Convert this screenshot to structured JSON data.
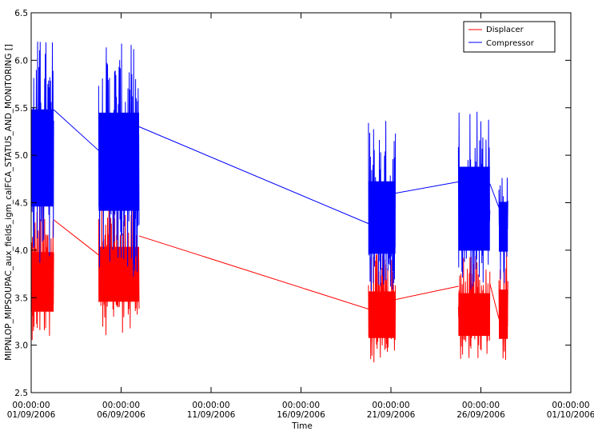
{
  "chart_data": {
    "type": "line",
    "xlabel": "Time",
    "ylabel": "MIPNLOP_MIPSOUPAC_aux_fields_igm_calFCA_STATUS_AND_MONITORING  []",
    "ylim": [
      2.5,
      6.5
    ],
    "yticks": [
      "2.5",
      "3.0",
      "3.5",
      "4.0",
      "4.5",
      "5.0",
      "5.5",
      "6.0",
      "6.5"
    ],
    "xlim": [
      "2006-09-01",
      "2006-10-01"
    ],
    "xticks": [
      {
        "time": "00:00:00",
        "date": "01/09/2006"
      },
      {
        "time": "00:00:00",
        "date": "06/09/2006"
      },
      {
        "time": "00:00:00",
        "date": "11/09/2006"
      },
      {
        "time": "00:00:00",
        "date": "16/09/2006"
      },
      {
        "time": "00:00:00",
        "date": "21/09/2006"
      },
      {
        "time": "00:00:00",
        "date": "26/09/2006"
      },
      {
        "time": "00:00:00",
        "date": "01/10/2006"
      }
    ],
    "legend_position": "top-right",
    "series": [
      {
        "name": "Displacer",
        "color": "#ff0000",
        "segments": [
          {
            "x": [
              "2006-09-01 00:00",
              "2006-09-02 06:00"
            ],
            "center": 3.6,
            "low": 3.05,
            "high": 4.6
          },
          {
            "x": [
              "2006-09-04 18:00",
              "2006-09-07 00:00"
            ],
            "center": 3.75,
            "low": 3.1,
            "high": 4.5
          },
          {
            "x": [
              "2006-09-19 18:00",
              "2006-09-21 06:00"
            ],
            "center": 3.3,
            "low": 2.8,
            "high": 4.0
          },
          {
            "x": [
              "2006-09-24 18:00",
              "2006-09-26 12:00"
            ],
            "center": 3.3,
            "low": 2.85,
            "high": 3.95
          },
          {
            "x": [
              "2006-09-27 00:00",
              "2006-09-27 12:00"
            ],
            "center": 3.3,
            "low": 2.78,
            "high": 4.05
          }
        ],
        "gap_lines": [
          [
            "2006-09-02 06:00",
            4.32,
            "2006-09-04 18:00",
            3.95
          ],
          [
            "2006-09-07 00:00",
            4.15,
            "2006-09-19 18:00",
            3.38
          ],
          [
            "2006-09-21 06:00",
            3.48,
            "2006-09-24 18:00",
            3.62
          ],
          [
            "2006-09-26 12:00",
            3.65,
            "2006-09-27 00:00",
            3.28
          ]
        ]
      },
      {
        "name": "Compressor",
        "color": "#0000ff",
        "segments": [
          {
            "x": [
              "2006-09-01 00:00",
              "2006-09-02 06:00"
            ],
            "center": 5.0,
            "low": 3.8,
            "high": 6.27
          },
          {
            "x": [
              "2006-09-04 18:00",
              "2006-09-07 00:00"
            ],
            "center": 5.0,
            "low": 3.7,
            "high": 6.18
          },
          {
            "x": [
              "2006-09-19 18:00",
              "2006-09-21 06:00"
            ],
            "center": 4.3,
            "low": 3.55,
            "high": 5.42
          },
          {
            "x": [
              "2006-09-24 18:00",
              "2006-09-26 12:00"
            ],
            "center": 4.4,
            "low": 3.5,
            "high": 5.66
          },
          {
            "x": [
              "2006-09-27 00:00",
              "2006-09-27 12:00"
            ],
            "center": 4.3,
            "low": 3.6,
            "high": 4.85
          }
        ],
        "gap_lines": [
          [
            "2006-09-02 06:00",
            5.48,
            "2006-09-04 18:00",
            5.05
          ],
          [
            "2006-09-07 00:00",
            5.3,
            "2006-09-19 18:00",
            4.28
          ],
          [
            "2006-09-21 06:00",
            4.6,
            "2006-09-24 18:00",
            4.72
          ],
          [
            "2006-09-26 12:00",
            4.7,
            "2006-09-27 00:00",
            4.45
          ]
        ]
      }
    ]
  }
}
